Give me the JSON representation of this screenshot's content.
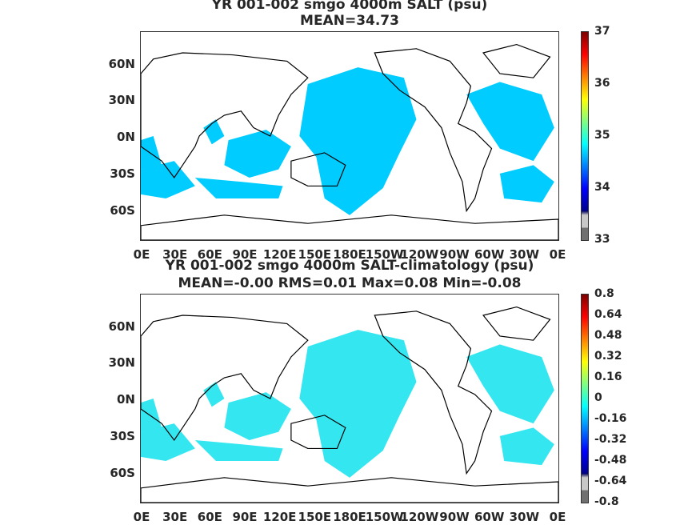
{
  "panel1": {
    "title_line1": "YR 001-002 smgo 4000m SALT (psu)",
    "title_line2": "MEAN=34.73",
    "field_color": "#00ccff",
    "colorbar_labels": [
      "37",
      "36",
      "35",
      "34",
      "33"
    ]
  },
  "panel2": {
    "title_line1": "YR 001-002 smgo 4000m SALT-climatology (psu)",
    "title_line2": "MEAN=-0.00   RMS=0.01   Max=0.08   Min=-0.08",
    "field_color": "#33e6f0",
    "colorbar_labels": [
      "0.8",
      "0.64",
      "0.48",
      "0.32",
      "0.16",
      "0",
      "-0.16",
      "-0.32",
      "-0.48",
      "-0.64",
      "-0.8"
    ]
  },
  "y_labels": [
    "60N",
    "30N",
    "0N",
    "30S",
    "60S"
  ],
  "x_labels": [
    "0E",
    "30E",
    "60E",
    "90E",
    "120E",
    "150E",
    "180E",
    "150W",
    "120W",
    "90W",
    "60W",
    "30W",
    "0E"
  ],
  "colors": {
    "jet": [
      "#00008f",
      "#0000ff",
      "#0080ff",
      "#00ffff",
      "#80ff80",
      "#ffff00",
      "#ff8000",
      "#ff0000",
      "#800000"
    ]
  }
}
